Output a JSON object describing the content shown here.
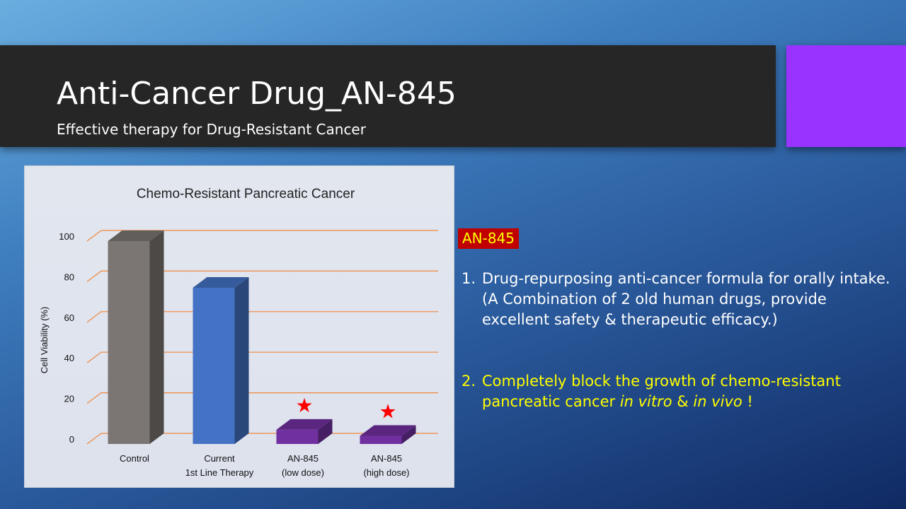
{
  "slide": {
    "title": "Anti-Cancer Drug_AN-845",
    "subtitle": "Effective therapy for Drug-Resistant Cancer",
    "accent_color": "#9933ff"
  },
  "drug_tag": {
    "label": "AN-845",
    "bg_color": "#c00000",
    "text_color": "#ffff00"
  },
  "points": [
    {
      "number": "1.",
      "lines": [
        "Drug-repurposing anti-cancer formula for orally intake.",
        "(A Combination of 2 old human drugs, provide",
        "excellent safety & therapeutic efficacy.)"
      ]
    },
    {
      "number": "2.",
      "line1": "Completely block the growth of chemo-resistant",
      "line2_pre": "pancreatic cancer ",
      "line2_em1": "in vitro",
      "line2_mid": " & ",
      "line2_em2": "in vivo",
      "line2_post": " !"
    }
  ],
  "chart_data": {
    "type": "bar",
    "title": "Chemo-Resistant Pancreatic Cancer",
    "ylabel": "Cell Viability (%)",
    "xlabel": "",
    "ylim": [
      0,
      100
    ],
    "yticks": [
      0,
      20,
      40,
      60,
      80,
      100
    ],
    "grid": true,
    "grid_color": "#f0883e",
    "categories": [
      [
        "Control"
      ],
      [
        "Current",
        "1st Line Therapy"
      ],
      [
        "AN-845",
        "(low dose)"
      ],
      [
        "AN-845",
        "(high dose)"
      ]
    ],
    "values": [
      100,
      77,
      7,
      4
    ],
    "colors": [
      "#7b7673",
      "#4472c4",
      "#7030a0",
      "#7030a0"
    ],
    "significance_marker": "★",
    "marked": [
      false,
      false,
      true,
      true
    ],
    "marker_color": "#ff0000"
  }
}
